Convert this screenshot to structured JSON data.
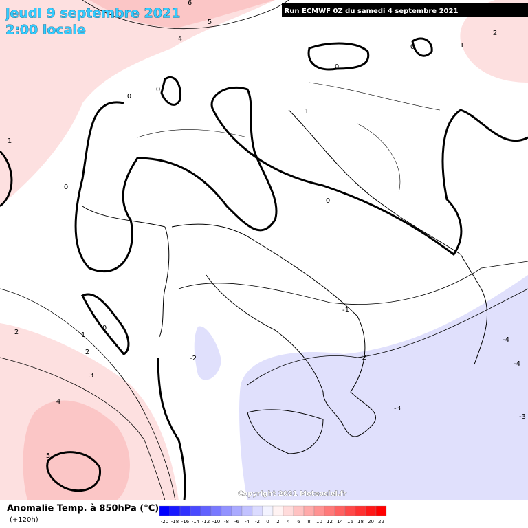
{
  "header": {
    "title": "jeudi 9 septembre 2021",
    "time": "2:00 locale",
    "run": "Run ECMWF 0Z du samedi 4 septembre 2021"
  },
  "footer": {
    "variable": "Anomalie Temp. à 850hPa (°C)",
    "lead": "(+120h)",
    "copyright": "Copyright 2021 Meteociel.fr"
  },
  "colorbar": {
    "labels": [
      -20,
      -18,
      -16,
      -14,
      -12,
      -10,
      -8,
      -6,
      -4,
      -2,
      0,
      2,
      4,
      6,
      8,
      10,
      12,
      14,
      16,
      18,
      20,
      22
    ]
  },
  "contour_labels": [
    "6",
    "5",
    "4",
    "0",
    "0",
    "0",
    "0",
    "1",
    "2",
    "1",
    "0",
    "0",
    "0",
    "1",
    "2",
    "1",
    "2",
    "3",
    "4",
    "5",
    "-2",
    "-1",
    "-2",
    "-3",
    "-4",
    "-4",
    "-3"
  ]
}
